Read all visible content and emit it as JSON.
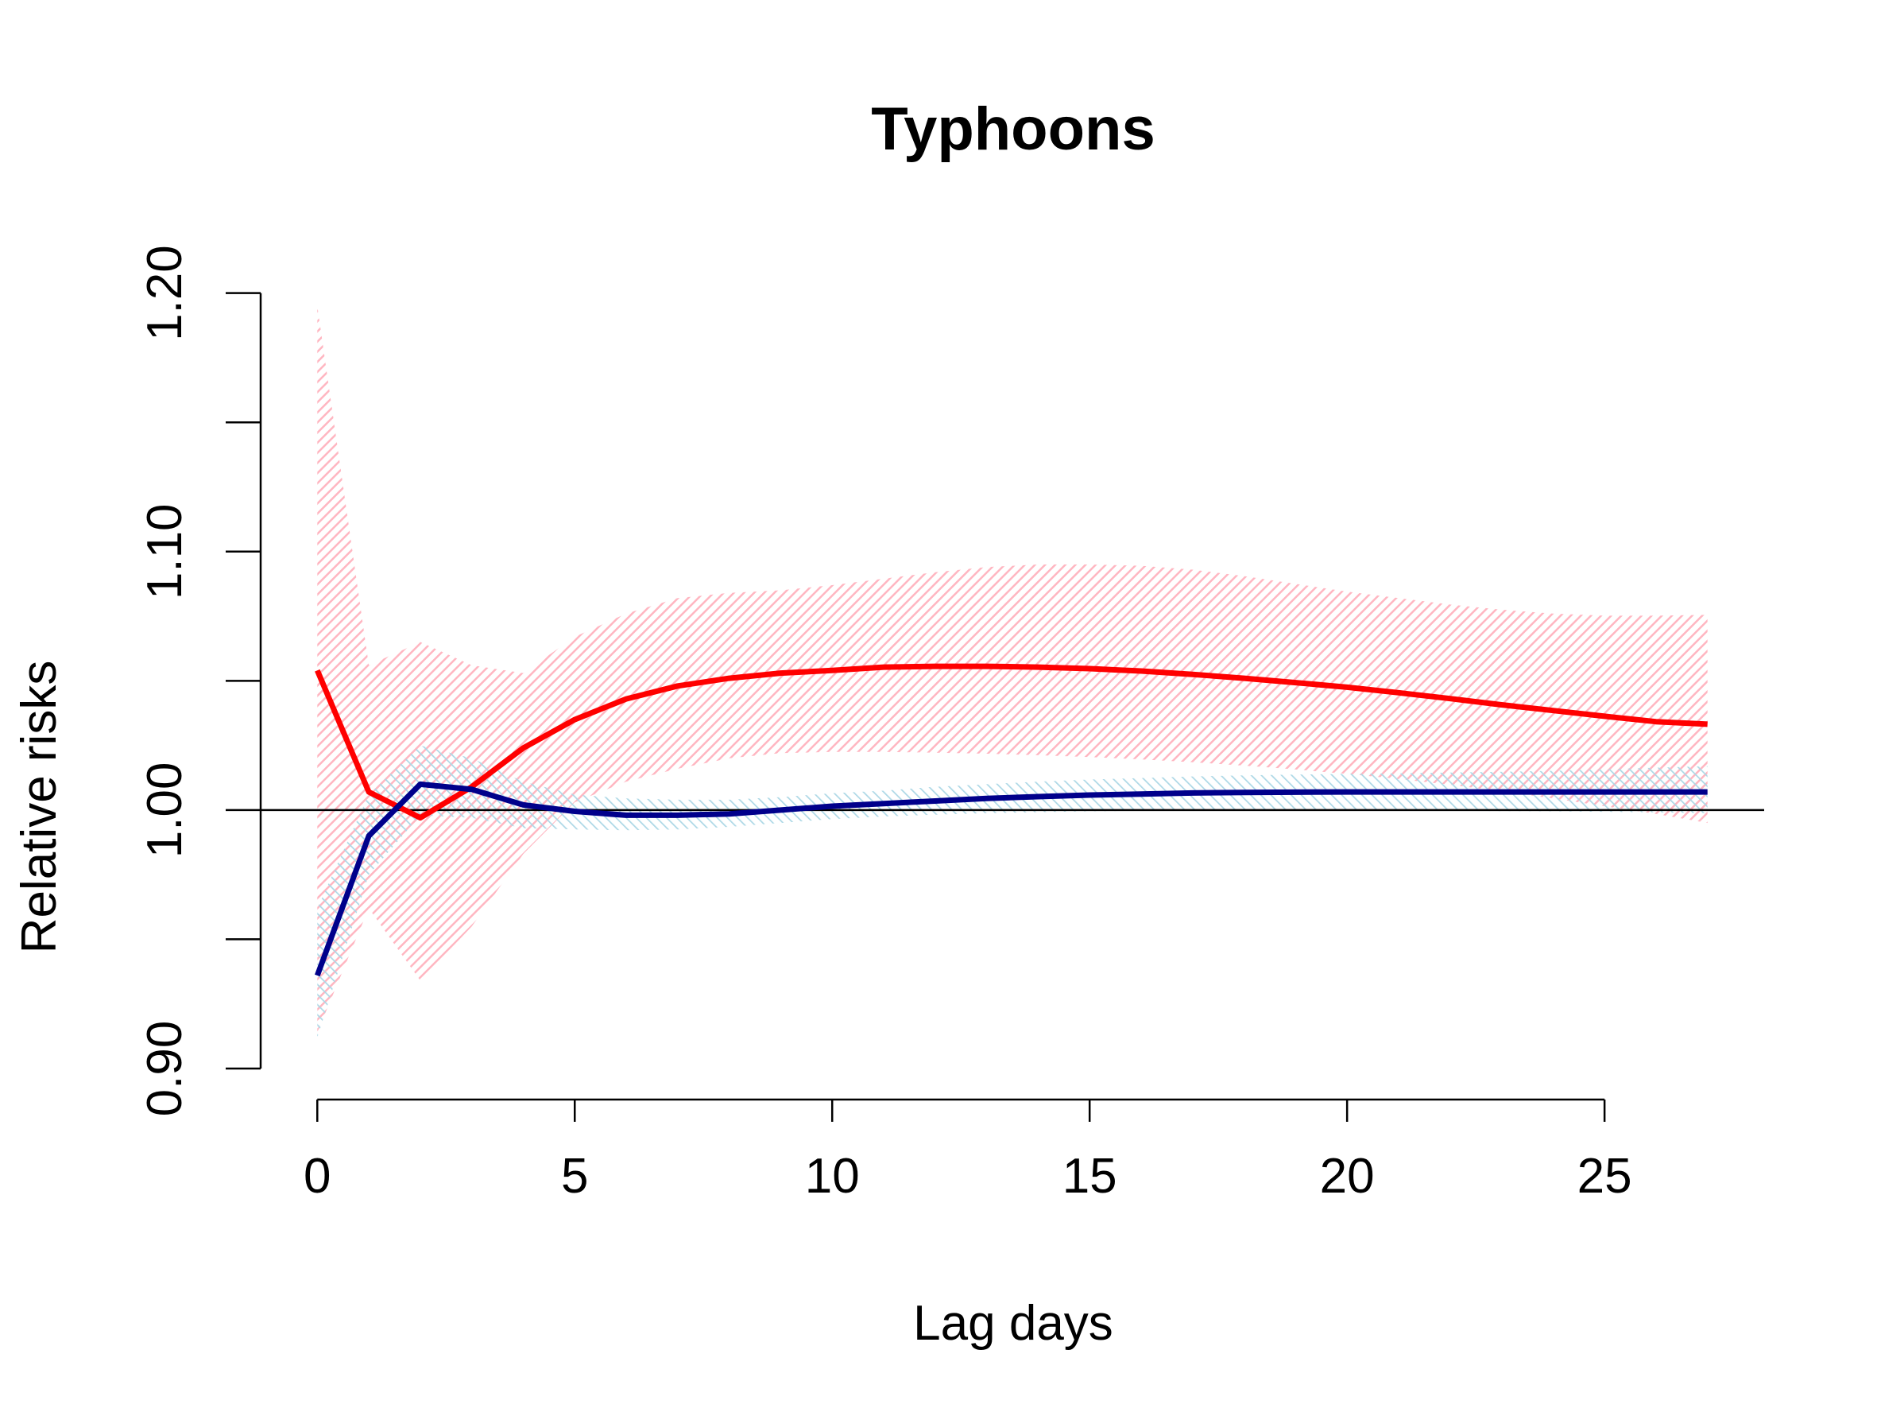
{
  "chart_data": {
    "type": "line",
    "title": "Typhoons",
    "xlabel": "Lag days",
    "ylabel": "Relative risks",
    "xlim": [
      -1.1,
      28.1
    ],
    "ylim": [
      0.888,
      1.2125
    ],
    "x_ticks": [
      0,
      5,
      10,
      15,
      20,
      25
    ],
    "x_tick_labels": [
      "0",
      "5",
      "10",
      "15",
      "20",
      "25"
    ],
    "y_ticks": [
      0.9,
      0.95,
      1.0,
      1.05,
      1.1,
      1.15,
      1.2
    ],
    "y_tick_labels": [
      "0.90",
      "",
      "1.00",
      "",
      "1.10",
      "",
      "1.20"
    ],
    "reference_line": 1.0,
    "grid": false,
    "legend": "none",
    "x": [
      0,
      1,
      2,
      3,
      4,
      5,
      6,
      7,
      8,
      9,
      10,
      11,
      12,
      13,
      14,
      15,
      16,
      17,
      18,
      19,
      20,
      21,
      22,
      23,
      24,
      25,
      26,
      27
    ],
    "series": [
      {
        "color": "#ff0000",
        "band_color": "#ffb6c1",
        "values": [
          1.054,
          1.007,
          0.997,
          1.009,
          1.024,
          1.035,
          1.043,
          1.048,
          1.051,
          1.053,
          1.054,
          1.0553,
          1.0556,
          1.0556,
          1.0553,
          1.0547,
          1.0538,
          1.0525,
          1.051,
          1.0493,
          1.0475,
          1.0454,
          1.0431,
          1.0407,
          1.0385,
          1.0363,
          1.0342,
          1.0332
        ],
        "lower": [
          0.914,
          0.962,
          0.934,
          0.955,
          0.983,
          1.003,
          1.011,
          1.016,
          1.02,
          1.022,
          1.0225,
          1.0225,
          1.0222,
          1.0218,
          1.0212,
          1.0205,
          1.0196,
          1.0185,
          1.0172,
          1.0157,
          1.014,
          1.012,
          1.0098,
          1.0072,
          1.0045,
          1.0015,
          0.9985,
          0.995
        ],
        "upper": [
          1.195,
          1.056,
          1.065,
          1.056,
          1.053,
          1.067,
          1.076,
          1.082,
          1.084,
          1.085,
          1.087,
          1.0895,
          1.092,
          1.094,
          1.095,
          1.095,
          1.0945,
          1.093,
          1.0905,
          1.0875,
          1.0845,
          1.082,
          1.0795,
          1.0775,
          1.076,
          1.0752,
          1.0752,
          1.0755
        ]
      },
      {
        "color": "#00008b",
        "band_color": "#add8e6",
        "values": [
          0.936,
          0.99,
          1.01,
          1.008,
          1.002,
          0.9995,
          0.998,
          0.998,
          0.9985,
          1.0,
          1.0015,
          1.0025,
          1.0035,
          1.0045,
          1.0052,
          1.0058,
          1.0062,
          1.0066,
          1.0068,
          1.0069,
          1.007,
          1.007,
          1.007,
          1.007,
          1.007,
          1.007,
          1.007,
          1.007
        ],
        "lower": [
          0.912,
          0.975,
          0.998,
          0.997,
          0.993,
          0.9925,
          0.9922,
          0.9925,
          0.9935,
          0.995,
          0.9965,
          0.9975,
          0.9982,
          0.9988,
          0.9992,
          0.9995,
          0.9997,
          0.9998,
          0.9999,
          0.9999,
          0.9999,
          0.9998,
          0.9997,
          0.9996,
          0.9995,
          0.9993,
          0.9991,
          0.9988
        ],
        "upper": [
          0.962,
          1.006,
          1.025,
          1.02,
          1.011,
          1.006,
          1.0045,
          1.004,
          1.004,
          1.005,
          1.0065,
          1.0075,
          1.009,
          1.01,
          1.011,
          1.0118,
          1.0124,
          1.013,
          1.0134,
          1.0137,
          1.014,
          1.0142,
          1.0145,
          1.0148,
          1.0152,
          1.0158,
          1.0164,
          1.017
        ]
      }
    ]
  }
}
